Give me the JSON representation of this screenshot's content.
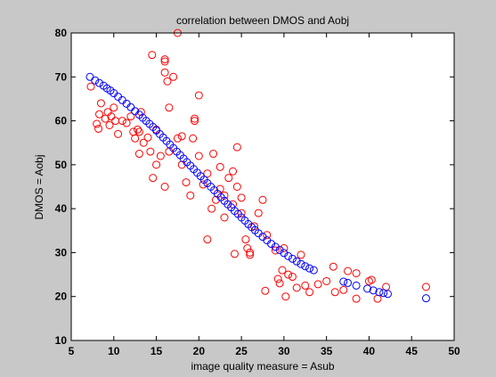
{
  "chart_data": {
    "type": "scatter",
    "title": "correlation between DMOS and Aobj",
    "x_label": "image quality measure = Asub",
    "y_label": "DMOS = Aobj",
    "xlim": [
      5,
      50
    ],
    "xticks": [
      5,
      10,
      15,
      20,
      25,
      30,
      35,
      40,
      45,
      50
    ],
    "ylim": [
      10,
      80
    ],
    "yticks": [
      10,
      20,
      30,
      40,
      50,
      60,
      70,
      80
    ],
    "series": [
      {
        "color": "#ff0000",
        "x": [
          7.3,
          8,
          8.2,
          8.3,
          8.5,
          9,
          9.3,
          9.5,
          9.7,
          10,
          10.2,
          10.5,
          11,
          11.5,
          12,
          12.3,
          12.5,
          12.8,
          13,
          13,
          13.2,
          13.5,
          14,
          14.3,
          14.5,
          14.6,
          15,
          15,
          15.5,
          16,
          16,
          16,
          16,
          16.3,
          16.5,
          16.5,
          17,
          17.5,
          17.5,
          18,
          18,
          18.5,
          19,
          19.3,
          19.5,
          19.5,
          20,
          20,
          20.5,
          21,
          21,
          21.5,
          21.7,
          22,
          22.5,
          22.5,
          23,
          23,
          23.5,
          24,
          24,
          24.2,
          24.5,
          24.5,
          25,
          25,
          25.5,
          25.7,
          26,
          26,
          26.5,
          27,
          27.5,
          27.8,
          28,
          29,
          29.3,
          29.5,
          29.8,
          30,
          30.2,
          30.5,
          31,
          31.5,
          32,
          32.5,
          33,
          34,
          35,
          35.8,
          36,
          37,
          37.5,
          38.5,
          38.5,
          40,
          40.3,
          41,
          42,
          46.7
        ],
        "y": [
          67.8,
          59.3,
          58.2,
          61.5,
          64,
          60.5,
          62,
          59,
          61,
          63,
          60,
          57,
          60,
          59.5,
          61,
          57.5,
          56,
          58,
          52.5,
          57.5,
          62,
          55,
          56.2,
          53,
          75,
          47,
          58,
          50,
          52,
          74,
          73.5,
          71,
          45,
          69,
          63,
          53,
          70,
          80,
          56,
          56.5,
          50,
          46,
          43,
          56,
          60,
          60.5,
          65.8,
          52,
          45.5,
          33,
          48,
          40,
          52.5,
          42,
          44.5,
          49.5,
          38,
          43,
          47,
          48.5,
          41,
          29.7,
          54,
          45,
          42.5,
          39,
          33,
          31,
          30,
          29.5,
          36,
          39,
          42,
          21.3,
          34,
          30.5,
          24,
          23,
          26,
          31,
          20,
          25,
          24.5,
          22,
          29.5,
          22.5,
          21,
          22.8,
          23.5,
          26.8,
          21,
          21.5,
          25.8,
          25.3,
          19.5,
          23.5,
          23.8,
          19.5,
          22.2,
          22.2
        ]
      },
      {
        "color": "#0000ff",
        "x": [
          7.2,
          7.8,
          8.3,
          8.8,
          9.2,
          9.6,
          10,
          10.5,
          11,
          11.5,
          12,
          12.5,
          13,
          13.4,
          13.8,
          14.2,
          14.6,
          15,
          15.4,
          15.8,
          16.2,
          16.6,
          17,
          17.4,
          17.8,
          18.2,
          18.6,
          19,
          19.4,
          19.8,
          20.2,
          20.6,
          21,
          21.4,
          21.8,
          22.2,
          22.6,
          23,
          23.4,
          23.8,
          24.2,
          24.6,
          25,
          25.4,
          25.8,
          26.2,
          26.6,
          27,
          27.5,
          28,
          28.5,
          29,
          29.5,
          30,
          30.5,
          31,
          31.5,
          32,
          32.5,
          33,
          33.5,
          37,
          37.5,
          38.5,
          39.8,
          40.5,
          41.2,
          41.7,
          42.2,
          46.7
        ],
        "y": [
          70,
          69.2,
          68.6,
          68,
          67.4,
          66.9,
          66.3,
          65.5,
          64.7,
          63.9,
          63.1,
          62.2,
          61.4,
          60.7,
          60,
          59.3,
          58.6,
          57.8,
          57,
          56.2,
          55.4,
          54.6,
          53.8,
          53,
          52.2,
          51.4,
          50.6,
          49.8,
          49,
          48.2,
          47.4,
          46.6,
          45.8,
          45,
          44.2,
          43.4,
          42.6,
          41.8,
          41,
          40.3,
          39.5,
          38.8,
          38,
          37.3,
          36.5,
          35.8,
          35.1,
          34.4,
          33.6,
          32.8,
          32,
          31.3,
          30.6,
          29.9,
          29.2,
          28.6,
          28,
          27.4,
          26.9,
          26.4,
          26,
          23.4,
          23.1,
          22.5,
          21.8,
          21.4,
          21,
          20.8,
          20.6,
          19.6
        ]
      }
    ]
  }
}
